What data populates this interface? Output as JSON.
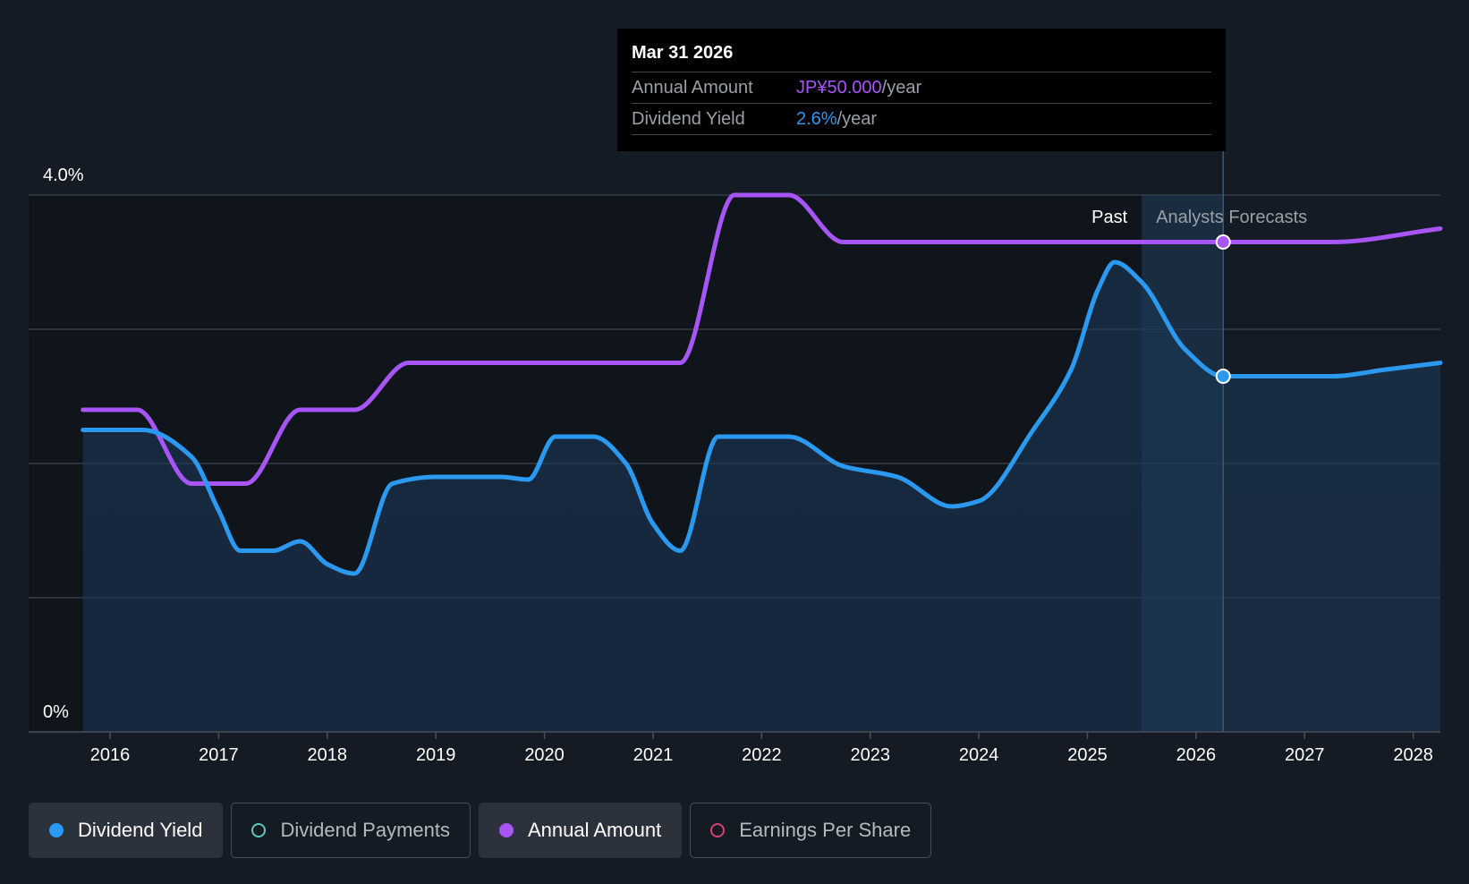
{
  "tooltip": {
    "date": "Mar 31 2026",
    "rows": [
      {
        "label": "Annual Amount",
        "value": "JP¥50.000",
        "unit": "/year"
      },
      {
        "label": "Dividend Yield",
        "value": "2.6%",
        "unit": "/year"
      }
    ]
  },
  "legend": [
    {
      "label": "Dividend Yield",
      "color": "#2b99f0",
      "active": true
    },
    {
      "label": "Dividend Payments",
      "color": "#5ec8c0",
      "active": false
    },
    {
      "label": "Annual Amount",
      "color": "#a855f7",
      "active": true
    },
    {
      "label": "Earnings Per Share",
      "color": "#d2457a",
      "active": false
    }
  ],
  "chart_data": {
    "type": "line",
    "y_tick_labels": [
      "4.0%",
      "0%"
    ],
    "ylim": [
      0,
      4.0
    ],
    "xlim": [
      2015.25,
      2028.25
    ],
    "x_tick_labels": [
      "2016",
      "2017",
      "2018",
      "2019",
      "2020",
      "2021",
      "2022",
      "2023",
      "2024",
      "2025",
      "2026",
      "2027",
      "2028"
    ],
    "x_ticks": [
      2016,
      2017,
      2018,
      2019,
      2020,
      2021,
      2022,
      2023,
      2024,
      2025,
      2026,
      2027,
      2028
    ],
    "grid": true,
    "regions": {
      "past_label": "Past",
      "forecast_label": "Analysts Forecasts",
      "boundary_x": 2025.5,
      "highlight_x": 2026.25
    },
    "series": [
      {
        "name": "Dividend Yield",
        "color": "#2b99f0",
        "points": [
          [
            2015.75,
            2.25
          ],
          [
            2016.3,
            2.25
          ],
          [
            2016.75,
            2.05
          ],
          [
            2017.0,
            1.65
          ],
          [
            2017.2,
            1.35
          ],
          [
            2017.5,
            1.35
          ],
          [
            2017.75,
            1.42
          ],
          [
            2018.0,
            1.25
          ],
          [
            2018.25,
            1.18
          ],
          [
            2018.6,
            1.85
          ],
          [
            2019.0,
            1.9
          ],
          [
            2019.6,
            1.9
          ],
          [
            2019.85,
            1.88
          ],
          [
            2020.1,
            2.2
          ],
          [
            2020.45,
            2.2
          ],
          [
            2020.75,
            2.0
          ],
          [
            2021.0,
            1.55
          ],
          [
            2021.25,
            1.35
          ],
          [
            2021.6,
            2.2
          ],
          [
            2021.75,
            2.2
          ],
          [
            2022.25,
            2.2
          ],
          [
            2022.75,
            1.98
          ],
          [
            2023.25,
            1.9
          ],
          [
            2023.75,
            1.68
          ],
          [
            2024.0,
            1.72
          ],
          [
            2024.5,
            2.25
          ],
          [
            2024.85,
            2.7
          ],
          [
            2025.1,
            3.3
          ],
          [
            2025.25,
            3.5
          ],
          [
            2025.5,
            3.35
          ],
          [
            2025.9,
            2.85
          ],
          [
            2026.25,
            2.65
          ],
          [
            2027.25,
            2.65
          ],
          [
            2027.75,
            2.7
          ],
          [
            2028.25,
            2.75
          ]
        ]
      },
      {
        "name": "Annual Amount",
        "color": "#a855f7",
        "points": [
          [
            2015.75,
            2.4
          ],
          [
            2016.25,
            2.4
          ],
          [
            2016.75,
            1.85
          ],
          [
            2017.25,
            1.85
          ],
          [
            2017.75,
            2.4
          ],
          [
            2018.25,
            2.4
          ],
          [
            2018.75,
            2.75
          ],
          [
            2019.25,
            2.75
          ],
          [
            2021.25,
            2.75
          ],
          [
            2021.75,
            4.0
          ],
          [
            2022.25,
            4.0
          ],
          [
            2022.75,
            3.65
          ],
          [
            2026.25,
            3.65
          ],
          [
            2027.25,
            3.65
          ],
          [
            2028.25,
            3.75
          ]
        ]
      }
    ],
    "highlight_points": [
      {
        "series": "Annual Amount",
        "x": 2026.25,
        "y": 3.65
      },
      {
        "series": "Dividend Yield",
        "x": 2026.25,
        "y": 2.65
      }
    ]
  }
}
